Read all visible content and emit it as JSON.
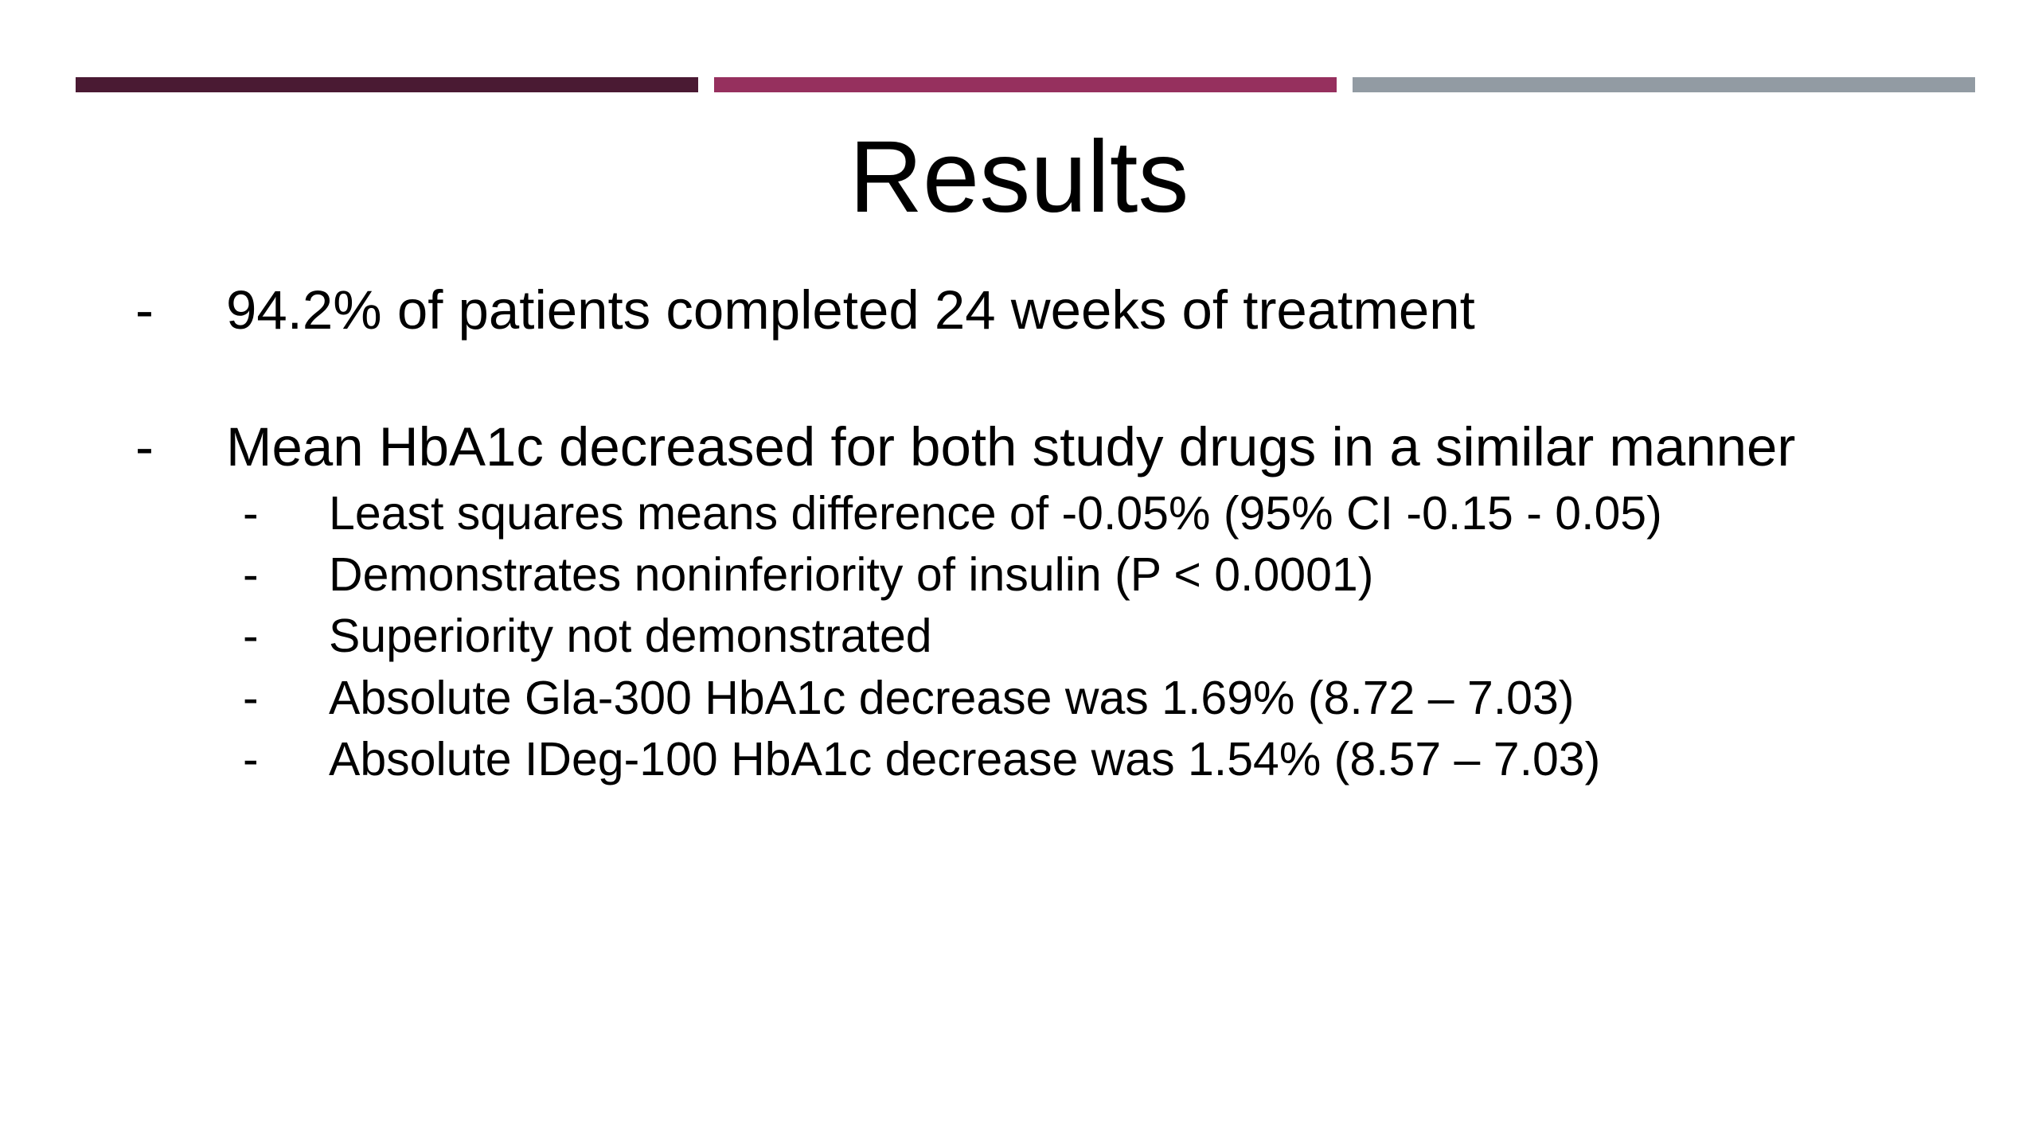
{
  "colors": {
    "bar_1": "#4a1a33",
    "bar_2": "#96305e",
    "bar_3": "#929ba3",
    "background": "#ffffff",
    "text": "#000000"
  },
  "slide": {
    "title": "Results",
    "bullet_marker": "-",
    "bullets": [
      {
        "text": "94.2% of patients completed 24 weeks of treatment"
      },
      {
        "text": "Mean HbA1c decreased for both study drugs in a similar manner",
        "sub": [
          "Least squares means difference of -0.05% (95% CI -0.15 - 0.05)",
          "Demonstrates noninferiority of insulin (P < 0.0001)",
          "Superiority not demonstrated",
          "Absolute Gla-300 HbA1c decrease was 1.69% (8.72 – 7.03)",
          "Absolute IDeg-100 HbA1c decrease was 1.54% (8.57 – 7.03)"
        ]
      }
    ]
  }
}
